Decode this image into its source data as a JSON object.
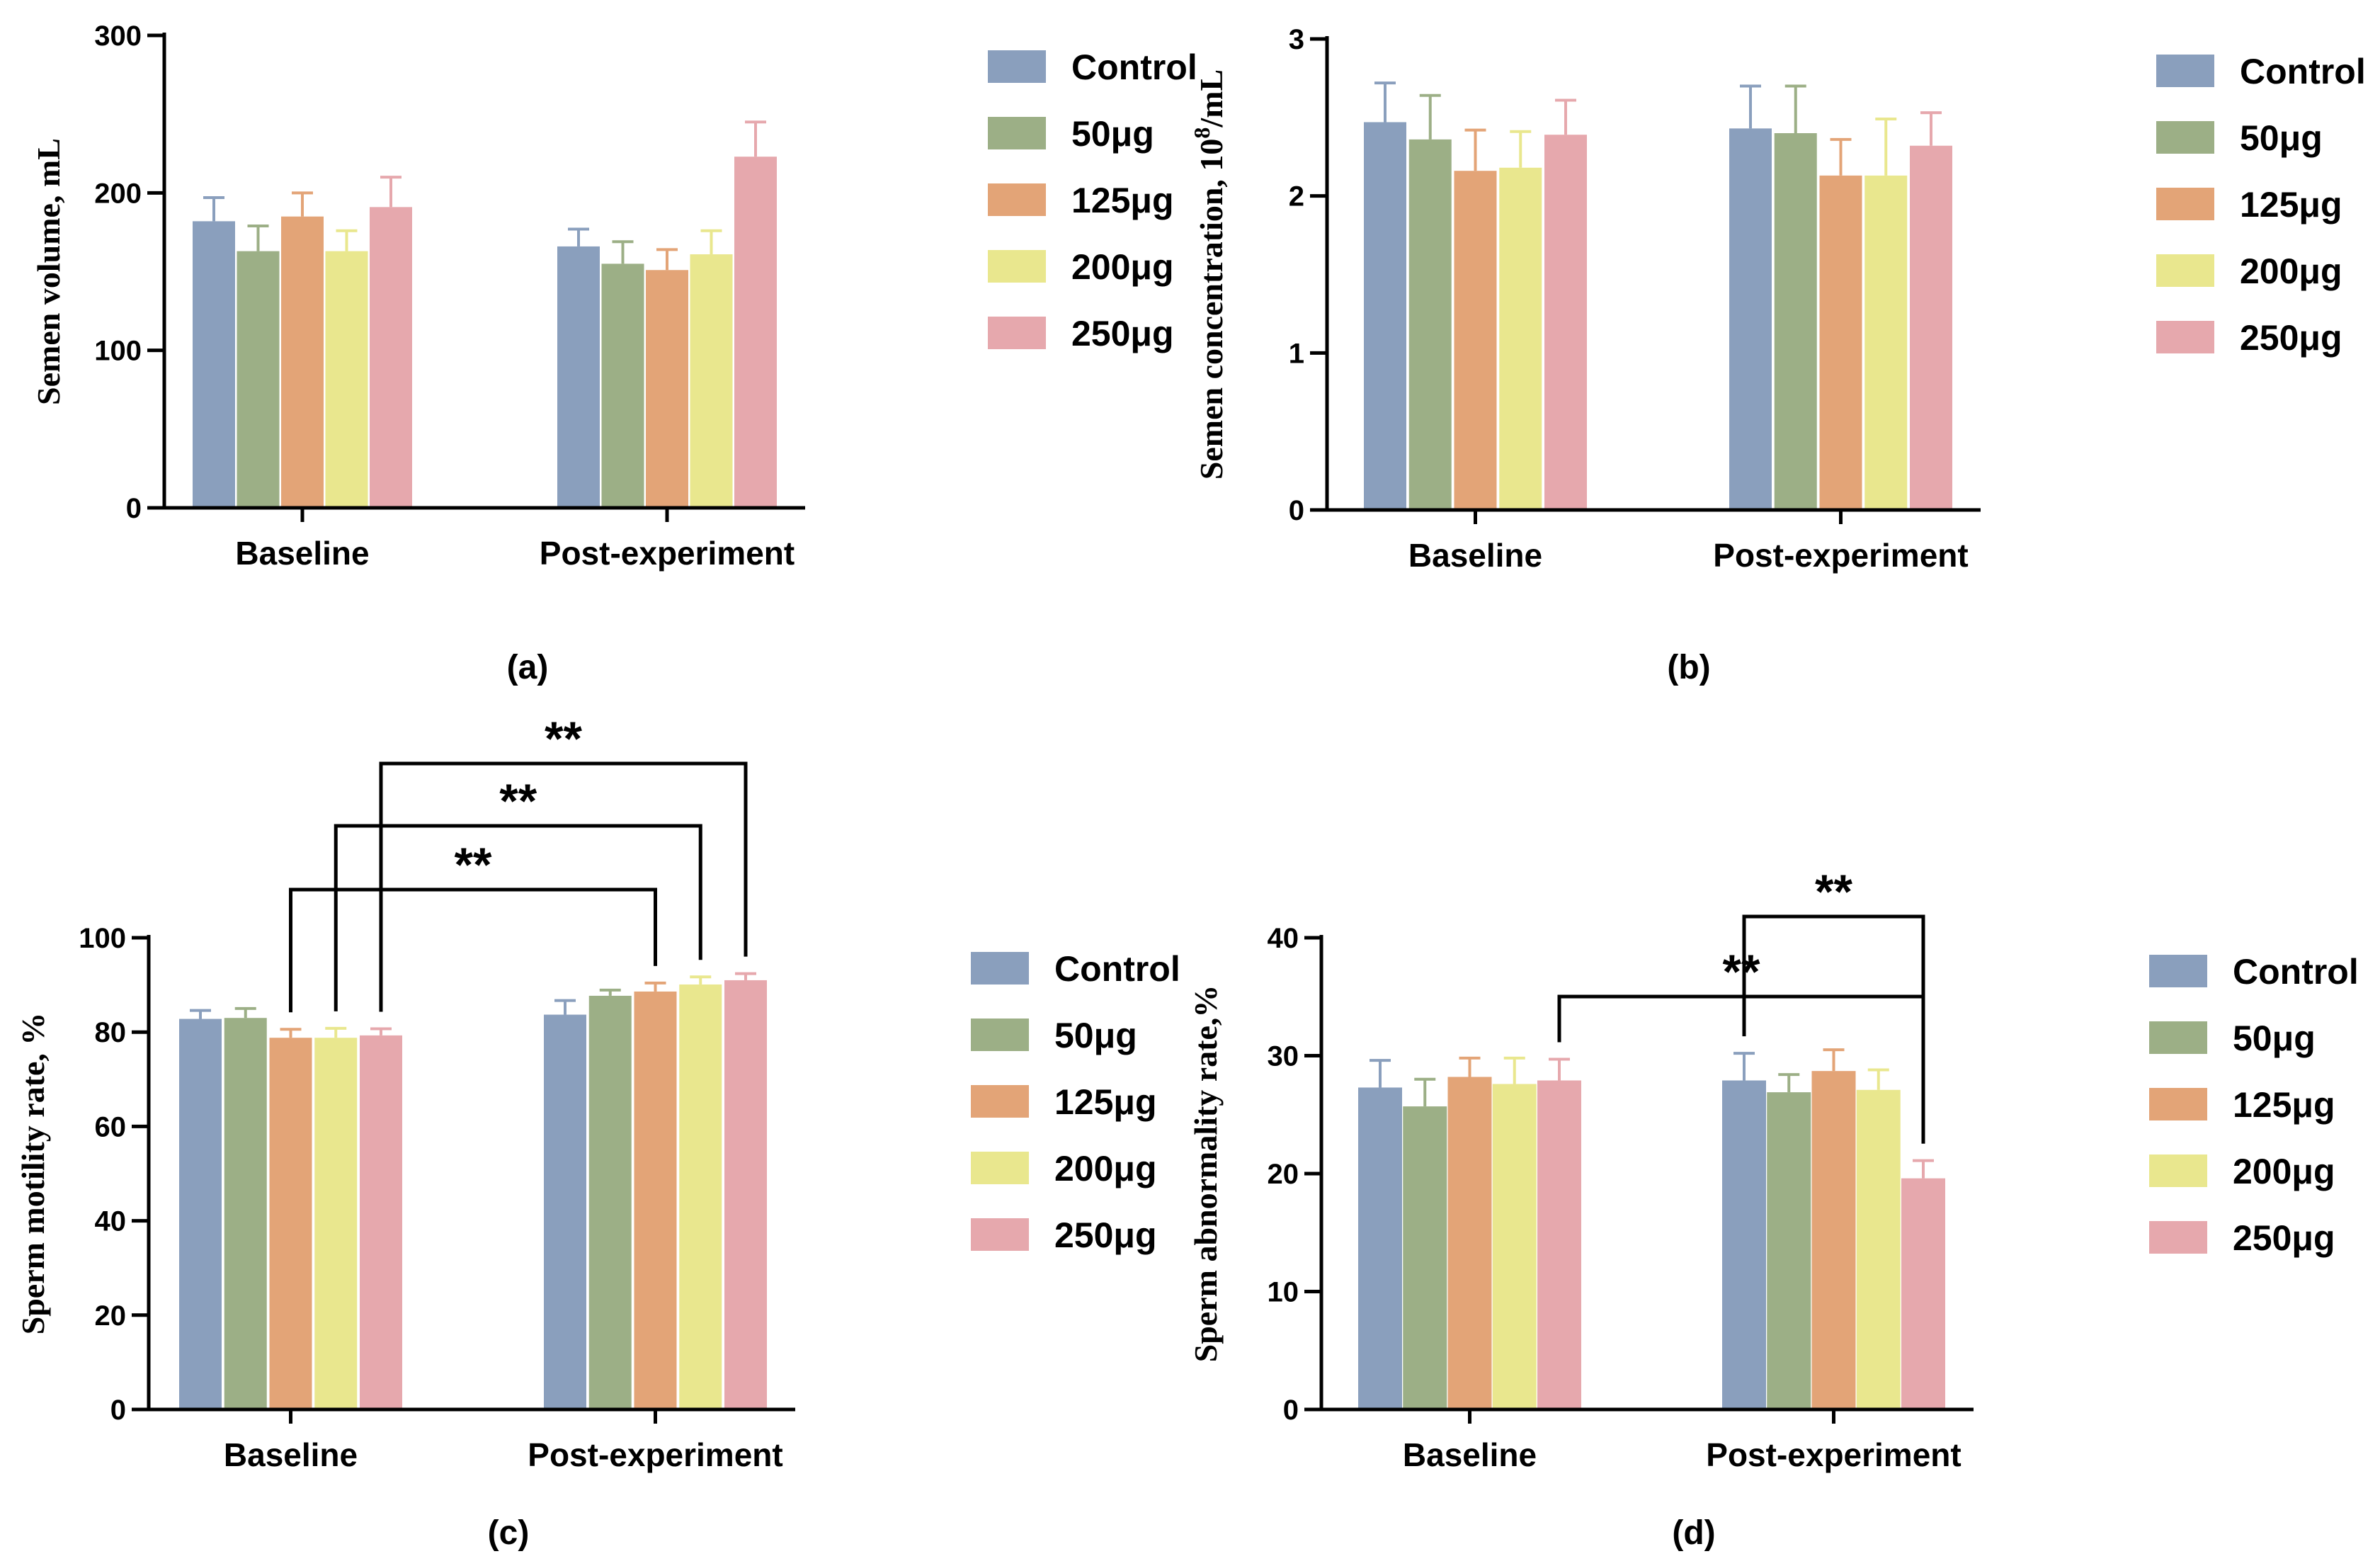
{
  "legend": {
    "series_names": [
      "Control",
      "50μg",
      "125μg",
      "200μg",
      "250μg"
    ]
  },
  "colors": {
    "series": [
      "#8a9fbd",
      "#9caf86",
      "#e3a477",
      "#e9e78e",
      "#e6a8ad"
    ],
    "axis": "#000000"
  },
  "chart_data": [
    {
      "id": "a",
      "type": "bar",
      "panel_label": "(a)",
      "ylabel": "Semen volume, mL",
      "categories": [
        "Baseline",
        "Post-experiment"
      ],
      "ylim": [
        0,
        300
      ],
      "yticks": [
        0,
        100,
        200,
        300
      ],
      "series": [
        {
          "name": "Control",
          "values": [
            182,
            166
          ],
          "errors": [
            15,
            11
          ]
        },
        {
          "name": "50μg",
          "values": [
            163,
            155
          ],
          "errors": [
            16,
            14
          ]
        },
        {
          "name": "125μg",
          "values": [
            185,
            151
          ],
          "errors": [
            15,
            13
          ]
        },
        {
          "name": "200μg",
          "values": [
            163,
            161
          ],
          "errors": [
            13,
            15
          ]
        },
        {
          "name": "250μg",
          "values": [
            191,
            223
          ],
          "errors": [
            19,
            22
          ]
        }
      ],
      "annotations": []
    },
    {
      "id": "b",
      "type": "bar",
      "panel_label": "(b)",
      "ylabel": "Semen concentration, 10",
      "ylabel_sup": "8",
      "ylabel_suffix": "/mL",
      "categories": [
        "Baseline",
        "Post-experiment"
      ],
      "ylim": [
        0,
        3
      ],
      "yticks": [
        0,
        1,
        2,
        3
      ],
      "series": [
        {
          "name": "Control",
          "values": [
            2.47,
            2.43
          ],
          "errors": [
            0.25,
            0.27
          ]
        },
        {
          "name": "50μg",
          "values": [
            2.36,
            2.4
          ],
          "errors": [
            0.28,
            0.3
          ]
        },
        {
          "name": "125μg",
          "values": [
            2.16,
            2.13
          ],
          "errors": [
            0.26,
            0.23
          ]
        },
        {
          "name": "200μg",
          "values": [
            2.18,
            2.13
          ],
          "errors": [
            0.23,
            0.36
          ]
        },
        {
          "name": "250μg",
          "values": [
            2.39,
            2.32
          ],
          "errors": [
            0.22,
            0.21
          ]
        }
      ],
      "annotations": []
    },
    {
      "id": "c",
      "type": "bar",
      "panel_label": "(c)",
      "ylabel": "Sperm motility rate, %",
      "categories": [
        "Baseline",
        "Post-experiment"
      ],
      "ylim": [
        0,
        100
      ],
      "yticks": [
        0,
        20,
        40,
        60,
        80,
        100
      ],
      "series": [
        {
          "name": "Control",
          "values": [
            82.8,
            83.7
          ],
          "errors": [
            1.8,
            3.0
          ]
        },
        {
          "name": "50μg",
          "values": [
            83.0,
            87.7
          ],
          "errors": [
            2.0,
            1.2
          ]
        },
        {
          "name": "125μg",
          "values": [
            78.8,
            88.6
          ],
          "errors": [
            1.8,
            1.8
          ]
        },
        {
          "name": "200μg",
          "values": [
            78.8,
            90.1
          ],
          "errors": [
            2.0,
            1.6
          ]
        },
        {
          "name": "250μg",
          "values": [
            79.3,
            91.0
          ],
          "errors": [
            1.4,
            1.4
          ]
        }
      ],
      "annotations": [
        {
          "from": [
            0,
            2
          ],
          "to": [
            1,
            2
          ],
          "label": "**",
          "level": 0
        },
        {
          "from": [
            0,
            3
          ],
          "to": [
            1,
            3
          ],
          "label": "**",
          "level": 1
        },
        {
          "from": [
            0,
            4
          ],
          "to": [
            1,
            4
          ],
          "label": "**",
          "level": 2
        }
      ]
    },
    {
      "id": "d",
      "type": "bar",
      "panel_label": "(d)",
      "ylabel": "Sperm abnormality rate,%",
      "categories": [
        "Baseline",
        "Post-experiment"
      ],
      "ylim": [
        0,
        40
      ],
      "yticks": [
        0,
        10,
        20,
        30,
        40
      ],
      "series": [
        {
          "name": "Control",
          "values": [
            27.3,
            27.9
          ],
          "errors": [
            2.3,
            2.3
          ]
        },
        {
          "name": "50μg",
          "values": [
            25.7,
            26.9
          ],
          "errors": [
            2.3,
            1.5
          ]
        },
        {
          "name": "125μg",
          "values": [
            28.2,
            28.7
          ],
          "errors": [
            1.6,
            1.8
          ]
        },
        {
          "name": "200μg",
          "values": [
            27.6,
            27.1
          ],
          "errors": [
            2.2,
            1.7
          ]
        },
        {
          "name": "250μg",
          "values": [
            27.9,
            19.6
          ],
          "errors": [
            1.8,
            1.5
          ]
        }
      ],
      "annotations": [
        {
          "from": [
            1,
            0
          ],
          "to": [
            1,
            4
          ],
          "label": "**",
          "level": 0
        },
        {
          "from": [
            0,
            4
          ],
          "to": [
            1,
            4
          ],
          "label": "**",
          "level": 1
        }
      ]
    }
  ]
}
